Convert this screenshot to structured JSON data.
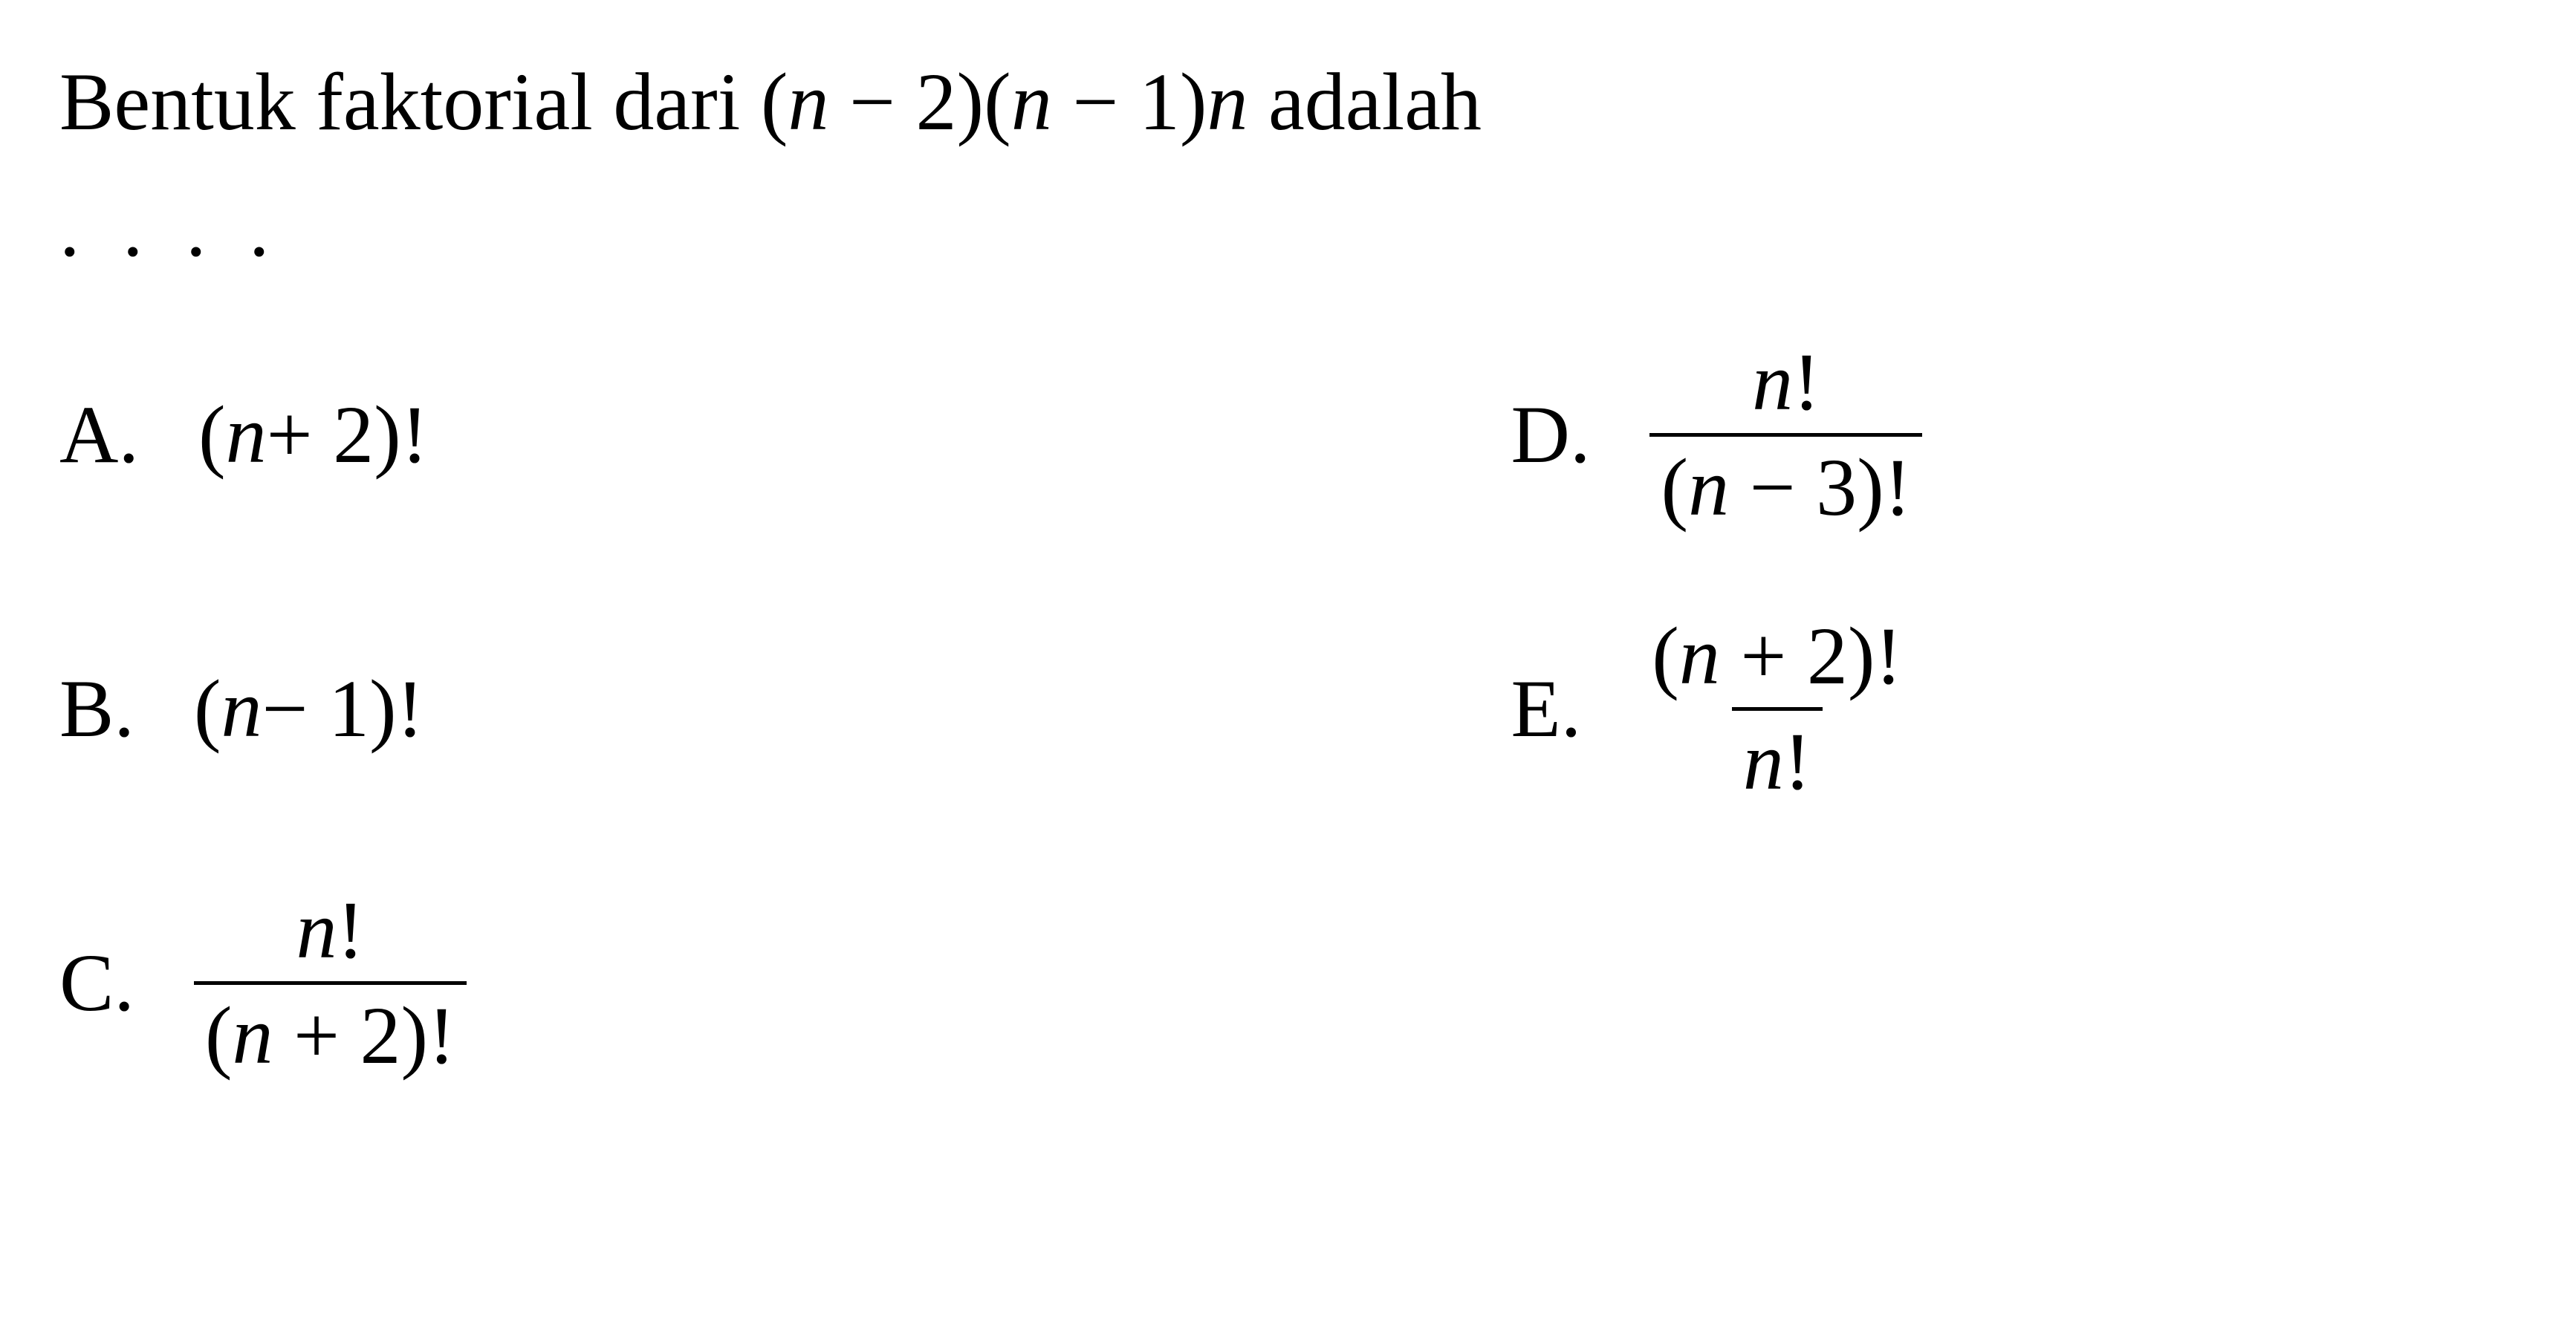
{
  "colors": {
    "text": "#000000",
    "background": "#ffffff",
    "fraction_bar": "#000000"
  },
  "typography": {
    "font_family": "Times New Roman",
    "question_fontsize": 110,
    "option_fontsize": 110,
    "fraction_bar_width": 5
  },
  "question": {
    "prefix": "Bentuk faktorial dari (",
    "var1": "n",
    "mid1": " − 2)(",
    "var2": "n",
    "mid2": " − 1)",
    "var3": "n",
    "suffix": " adalah",
    "dots": ". . . ."
  },
  "options": {
    "A": {
      "label": "A.",
      "prefix": "(",
      "var": "n",
      "suffix": " + 2)!"
    },
    "B": {
      "label": "B.",
      "prefix": "(",
      "var": "n",
      "suffix": " − 1)!"
    },
    "C": {
      "label": "C.",
      "num_var": "n",
      "num_suffix": "!",
      "den_prefix": "(",
      "den_var": "n",
      "den_suffix": " + 2)!"
    },
    "D": {
      "label": "D.",
      "num_var": "n",
      "num_suffix": "!",
      "den_prefix": "(",
      "den_var": "n",
      "den_suffix": " − 3)!"
    },
    "E": {
      "label": "E.",
      "num_prefix": "(",
      "num_var": "n",
      "num_suffix": " + 2)!",
      "den_var": "n",
      "den_suffix": "!"
    }
  }
}
